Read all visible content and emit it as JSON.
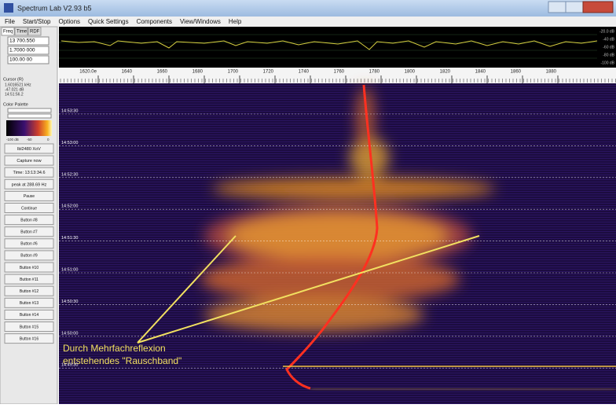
{
  "window": {
    "title": "Spectrum Lab V2.93 b5"
  },
  "menu": [
    "File",
    "Start/Stop",
    "Options",
    "Quick Settings",
    "Components",
    "View/Windows",
    "Help"
  ],
  "tabs": [
    "Freq",
    "Time",
    "RDF"
  ],
  "fields": [
    "13 700.550",
    "1.7000 000",
    "100.00 00"
  ],
  "cursor": {
    "title": "Cursor (R)",
    "lines": [
      "1.6016521 kHz",
      "-47.021 dB",
      "14:51:56.2"
    ]
  },
  "palette": {
    "title": "Color Palette",
    "scale": [
      "-100 dB",
      "-50",
      "0"
    ]
  },
  "buttons": [
    "lbl2480 XoV",
    "Capture now",
    "Time: 13:13:34.6",
    "peak at 288.69 Hz",
    "Pause",
    "Continue",
    "Button #8",
    "Button #7",
    "Button #6",
    "Button #9",
    "Button #10",
    "Button #11",
    "Button #12",
    "Button #13",
    "Button #14",
    "Button #15",
    "Button #16"
  ],
  "spectrum": {
    "db_labels": [
      "-20.0 dB",
      "-40 dB",
      "-60 dB",
      "-80 dB",
      "-100 dB"
    ]
  },
  "freq_axis": [
    "1620.0e",
    "1640",
    "1660",
    "1680",
    "1700",
    "1720",
    "1740",
    "1760",
    "1780",
    "1800",
    "1820",
    "1840",
    "1860",
    "1880"
  ],
  "time_labels": [
    "14:53:30",
    "14:53:00",
    "14:52:30",
    "14:52:00",
    "14:51:30",
    "14:51:00",
    "14:50:30",
    "14:50:00",
    "14:49:30"
  ],
  "annotation": [
    "Durch Mehrfachreflexion",
    "entstehendes \"Rauschband\""
  ]
}
